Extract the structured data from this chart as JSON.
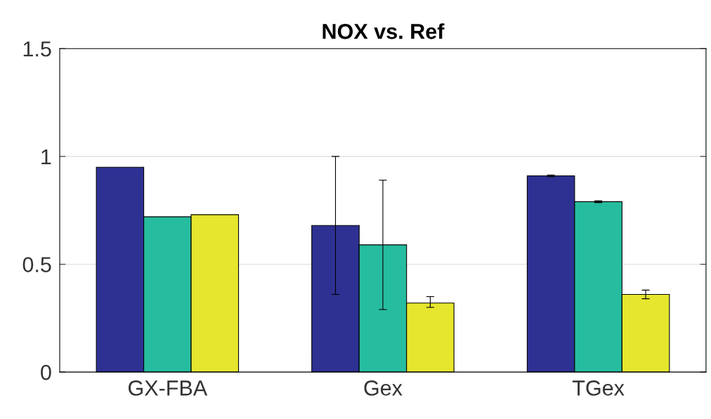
{
  "chart_data": {
    "type": "bar",
    "title": "NOX vs. Ref",
    "categories": [
      "GX-FBA",
      "Gex",
      "TGex"
    ],
    "series": [
      {
        "color": "#2e3192",
        "values": [
          0.95,
          0.68,
          0.91
        ],
        "errors": [
          null,
          [
            0.36,
            1.0
          ],
          0.004
        ]
      },
      {
        "color": "#26bc9f",
        "values": [
          0.72,
          0.59,
          0.79
        ],
        "errors": [
          null,
          [
            0.29,
            0.89
          ],
          0.004
        ]
      },
      {
        "color": "#e6e62e",
        "values": [
          0.73,
          0.32,
          0.36
        ],
        "errors": [
          null,
          [
            0.3,
            0.35
          ],
          [
            0.34,
            0.38
          ]
        ]
      }
    ],
    "ylim": [
      0,
      1.5
    ],
    "yticks": [
      0,
      0.5,
      1,
      1.5
    ],
    "grid": "y",
    "legend": false
  }
}
